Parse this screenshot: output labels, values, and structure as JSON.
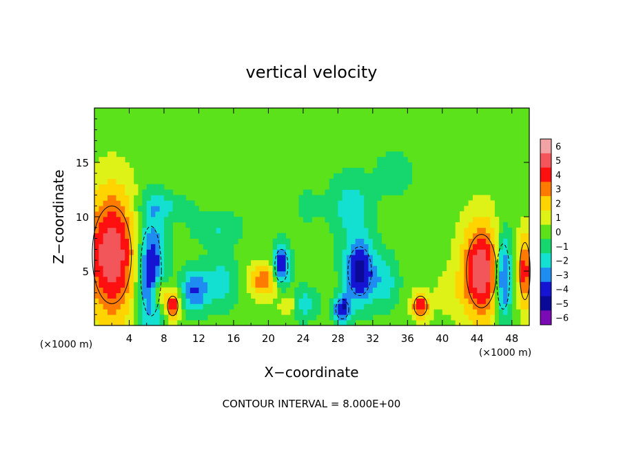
{
  "chart_data": {
    "type": "heatmap",
    "title": "vertical velocity",
    "xlabel": "X−coordinate",
    "ylabel": "Z−coordinate",
    "x_unit_label": "(×1000 m)",
    "y_unit_label": "(×1000 m)",
    "footer": "CONTOUR INTERVAL = 8.000E+00",
    "xlim": [
      0,
      50
    ],
    "ylim": [
      0,
      20
    ],
    "x_ticks": [
      4,
      8,
      12,
      16,
      20,
      24,
      28,
      32,
      36,
      40,
      44,
      48
    ],
    "y_ticks": [
      5,
      10,
      15
    ],
    "colorbar": {
      "levels": [
        "6",
        "5",
        "4",
        "3",
        "2",
        "1",
        "0",
        "−1",
        "−2",
        "−3",
        "−4",
        "−5",
        "−6"
      ],
      "colors": [
        "#f2a3a6",
        "#f2555a",
        "#ff1010",
        "#ff7b00",
        "#ffd400",
        "#dff218",
        "#5ce21a",
        "#16d66e",
        "#14e0d2",
        "#1e8cf0",
        "#1414d2",
        "#0a0a96",
        "#7a0ab4"
      ]
    },
    "features": [
      {
        "x": 2.0,
        "z": 6.5,
        "rx": 3.0,
        "rz": 6.0,
        "w": 5.5
      },
      {
        "x": 6.5,
        "z": 5.0,
        "rx": 1.6,
        "rz": 5.5,
        "w": -5.0
      },
      {
        "x": 7.5,
        "z": 3.0,
        "rx": 0.9,
        "rz": 1.5,
        "w": 3.5
      },
      {
        "x": 9.0,
        "z": 1.8,
        "rx": 0.8,
        "rz": 1.2,
        "w": 5.0
      },
      {
        "x": 11.5,
        "z": 3.2,
        "rx": 1.5,
        "rz": 2.0,
        "w": -3.5
      },
      {
        "x": 14.5,
        "z": 4.0,
        "rx": 2.0,
        "rz": 2.5,
        "w": -2.0
      },
      {
        "x": 19.5,
        "z": 4.2,
        "rx": 1.6,
        "rz": 1.5,
        "w": 3.5
      },
      {
        "x": 21.5,
        "z": 5.5,
        "rx": 1.0,
        "rz": 2.0,
        "w": -4.5
      },
      {
        "x": 22.5,
        "z": 2.0,
        "rx": 1.2,
        "rz": 1.2,
        "w": 2.0
      },
      {
        "x": 24.0,
        "z": 2.0,
        "rx": 1.5,
        "rz": 1.5,
        "w": -2.5
      },
      {
        "x": 28.5,
        "z": 1.5,
        "rx": 1.0,
        "rz": 1.2,
        "w": -4.5
      },
      {
        "x": 30.5,
        "z": 5.0,
        "rx": 1.8,
        "rz": 3.0,
        "w": -5.0
      },
      {
        "x": 33.5,
        "z": 4.0,
        "rx": 1.5,
        "rz": 2.5,
        "w": -2.0
      },
      {
        "x": 37.5,
        "z": 1.8,
        "rx": 1.0,
        "rz": 1.2,
        "w": 4.5
      },
      {
        "x": 40.5,
        "z": 3.0,
        "rx": 1.5,
        "rz": 2.0,
        "w": 1.0
      },
      {
        "x": 44.5,
        "z": 5.0,
        "rx": 2.3,
        "rz": 4.5,
        "w": 5.5
      },
      {
        "x": 47.0,
        "z": 4.5,
        "rx": 1.0,
        "rz": 4.0,
        "w": -5.0
      },
      {
        "x": 49.5,
        "z": 5.0,
        "rx": 0.8,
        "rz": 3.5,
        "w": 4.0
      },
      {
        "x": 29.5,
        "z": 11.0,
        "rx": 2.5,
        "rz": 3.0,
        "w": -2.0
      },
      {
        "x": 24.5,
        "z": 11.0,
        "rx": 1.5,
        "rz": 1.5,
        "w": -1.0
      },
      {
        "x": 34.5,
        "z": 14.0,
        "rx": 2.0,
        "rz": 2.0,
        "w": -1.5
      },
      {
        "x": 8.0,
        "z": 11.0,
        "rx": 3.0,
        "rz": 1.2,
        "w": -1.5
      },
      {
        "x": 14.0,
        "z": 9.0,
        "rx": 3.0,
        "rz": 1.5,
        "w": -1.5
      }
    ]
  }
}
